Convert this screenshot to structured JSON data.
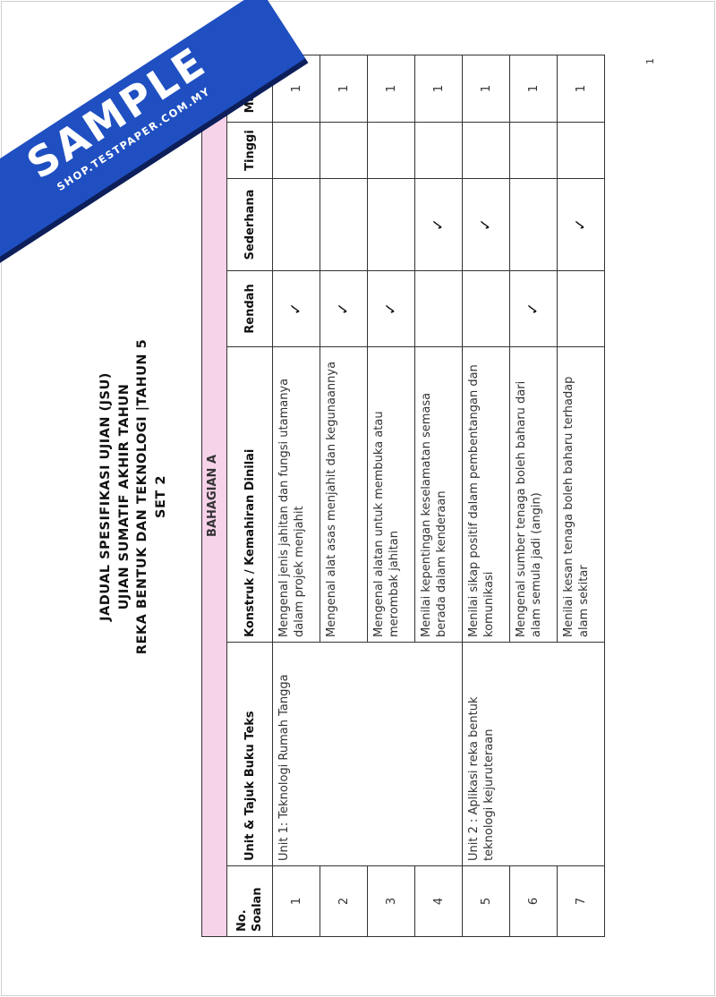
{
  "watermark": {
    "big": "SAMPLE",
    "small": "SHOP.TESTPAPER.COM.MY",
    "color": "#1f4fc1"
  },
  "page_number": "1",
  "title": [
    "JADUAL SPESIFIKASI UJIAN (JSU)",
    "UJIAN SUMATIF AKHIR TAHUN",
    "REKA BENTUK DAN TEKNOLOGI |TAHUN 5",
    "SET 2"
  ],
  "table": {
    "section": "BAHAGIAN A",
    "section_color": "#f7d3ea",
    "headers": [
      "No. Soalan",
      "Unit & Tajuk Buku Teks",
      "Konstruk / Kemahiran Dinilai",
      "Rendah",
      "Sederhana",
      "Tinggi",
      "Markah"
    ],
    "units": [
      "Unit 1: Teknologi Rumah Tangga",
      "Unit 2 : Aplikasi reka bentuk teknologi kejuruteraan"
    ],
    "tick": "✓",
    "rows": [
      {
        "no": "1",
        "konstruk": "Mengenal jenis jahitan dan fungsi utamanya dalam projek menjahit",
        "rendah": "✓",
        "sederhana": "",
        "tinggi": "",
        "markah": "1"
      },
      {
        "no": "2",
        "konstruk": "Mengenal alat asas menjahit dan kegunaannya",
        "rendah": "✓",
        "sederhana": "",
        "tinggi": "",
        "markah": "1"
      },
      {
        "no": "3",
        "konstruk": "Mengenal alatan untuk membuka atau merombak jahitan",
        "rendah": "✓",
        "sederhana": "",
        "tinggi": "",
        "markah": "1"
      },
      {
        "no": "4",
        "konstruk": "Menilai kepentingan keselamatan semasa berada dalam kenderaan",
        "rendah": "",
        "sederhana": "✓",
        "tinggi": "",
        "markah": "1"
      },
      {
        "no": "5",
        "konstruk": "Menilai sikap positif dalam pembentangan dan komunikasi",
        "rendah": "",
        "sederhana": "✓",
        "tinggi": "",
        "markah": "1"
      },
      {
        "no": "6",
        "konstruk": "Mengenal sumber tenaga boleh baharu dari alam semula jadi (angin)",
        "rendah": "✓",
        "sederhana": "",
        "tinggi": "",
        "markah": "1"
      },
      {
        "no": "7",
        "konstruk": "Menilai kesan tenaga boleh baharu terhadap alam sekitar",
        "rendah": "",
        "sederhana": "✓",
        "tinggi": "",
        "markah": "1"
      }
    ]
  }
}
